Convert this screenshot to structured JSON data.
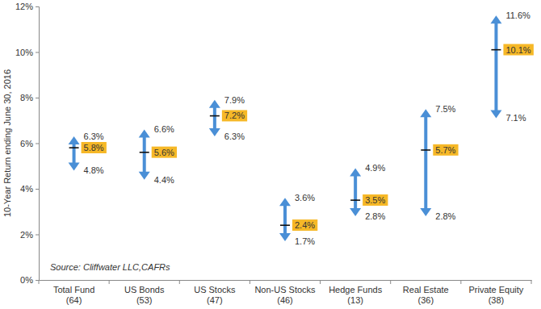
{
  "chart_data": {
    "type": "range",
    "y_label": "10-Year Return ending June 30, 2016",
    "annotations": [
      "Source: Cliffwater LLC,CAFRs"
    ],
    "categories": [
      "Total Fund\n(64)",
      "US Bonds\n(53)",
      "US Stocks\n(47)",
      "Non-US Stocks\n(46)",
      "Hedge Funds\n(13)",
      "Real Estate\n(36)",
      "Private Equity\n(38)"
    ],
    "values": [
      5.8,
      5.6,
      7.2,
      2.4,
      3.5,
      5.7,
      10.1
    ],
    "value_labels": [
      "5.8%",
      "5.6%",
      "7.2%",
      "2.4%",
      "3.5%",
      "5.7%",
      "10.1%"
    ],
    "high": [
      6.3,
      6.6,
      7.9,
      3.6,
      4.9,
      7.5,
      11.6
    ],
    "high_labels": [
      "6.3%",
      "6.6%",
      "7.9%",
      "3.6%",
      "4.9%",
      "7.5%",
      "11.6%"
    ],
    "low": [
      4.8,
      4.4,
      6.3,
      1.7,
      2.8,
      2.8,
      7.1
    ],
    "low_labels": [
      "4.8%",
      "4.4%",
      "6.3%",
      "1.7%",
      "2.8%",
      "2.8%",
      "7.1%"
    ],
    "color": "#4a8fd6",
    "data_labels": true,
    "grid": false,
    "ylim": [
      0,
      12
    ],
    "yticks": [
      {
        "value": 0,
        "label": "0%"
      },
      {
        "value": 2,
        "label": "2%"
      },
      {
        "value": 4,
        "label": "4%"
      },
      {
        "value": 6,
        "label": "6%"
      },
      {
        "value": 8,
        "label": "8%"
      },
      {
        "value": 10,
        "label": "10%"
      },
      {
        "value": 12,
        "label": "12%"
      }
    ]
  }
}
